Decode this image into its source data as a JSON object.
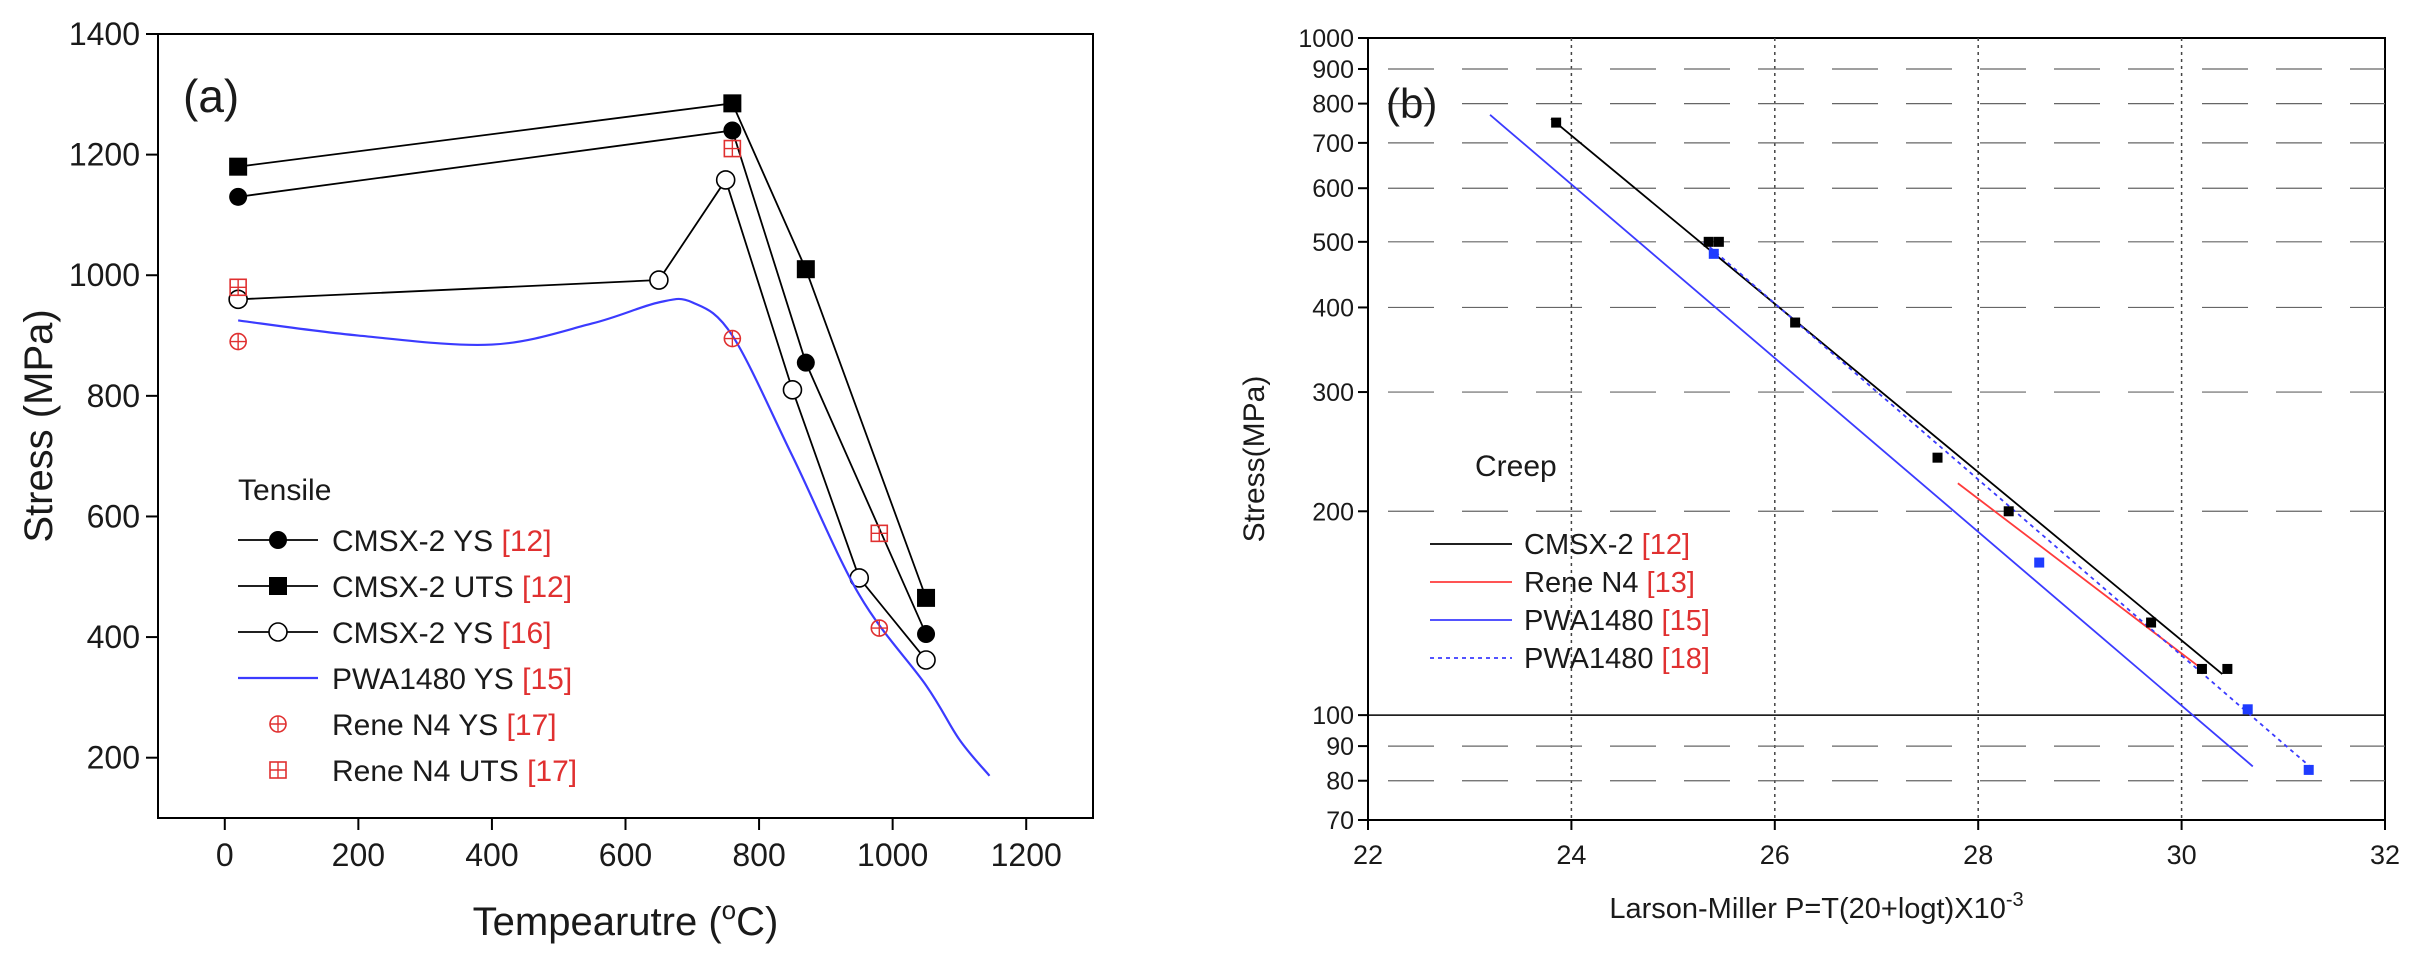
{
  "chart_data": [
    {
      "type": "line",
      "panel": "(a)",
      "xlabel": "Tempearutre (",
      "xlabel_sup": "o",
      "xlabel_tail": "C)",
      "ylabel": "Stress (MPa)",
      "xlim": [
        -100,
        1300
      ],
      "ylim": [
        100,
        1400
      ],
      "xticks": [
        0,
        200,
        400,
        600,
        800,
        1000,
        1200
      ],
      "yticks": [
        200,
        400,
        600,
        800,
        1000,
        1200,
        1400
      ],
      "legend_title": "Tensile",
      "series": [
        {
          "name": "CMSX-2 YS",
          "ref": "[12]",
          "marker": "circle-filled",
          "color": "#000000",
          "x": [
            20,
            760,
            870,
            1050
          ],
          "y": [
            1130,
            1240,
            855,
            405
          ]
        },
        {
          "name": "CMSX-2 UTS",
          "ref": "[12]",
          "marker": "square-filled",
          "color": "#000000",
          "x": [
            20,
            760,
            870,
            1050
          ],
          "y": [
            1180,
            1285,
            1010,
            465
          ]
        },
        {
          "name": "CMSX-2 YS",
          "ref": "[16]",
          "marker": "circle-open",
          "color": "#000000",
          "x": [
            20,
            650,
            750,
            850,
            950,
            1050
          ],
          "y": [
            960,
            992,
            1158,
            810,
            498,
            362
          ]
        },
        {
          "name": "PWA1480 YS",
          "ref": "[15]",
          "marker": "none",
          "color": "#3b3bff",
          "x": [
            20,
            200,
            400,
            550,
            650,
            700,
            760,
            850,
            950,
            1050,
            1100,
            1145
          ],
          "y": [
            925,
            900,
            885,
            920,
            955,
            955,
            900,
            700,
            470,
            320,
            230,
            170
          ]
        },
        {
          "name": "Rene N4 YS",
          "ref": "[17]",
          "marker": "circle-plus",
          "color": "#e03030",
          "x": [
            20,
            760,
            980
          ],
          "y": [
            890,
            895,
            415
          ]
        },
        {
          "name": "Rene N4 UTS",
          "ref": "[17]",
          "marker": "square-plus",
          "color": "#e03030",
          "x": [
            20,
            760,
            980
          ],
          "y": [
            980,
            1210,
            572
          ]
        }
      ]
    },
    {
      "type": "line",
      "panel": "(b)",
      "xlabel": "Larson-Miller P=T(20+logt)X10",
      "xlabel_sup": "-3",
      "ylabel": "Stress(MPa)",
      "yscale": "log",
      "xlim": [
        22,
        32
      ],
      "ylim": [
        70,
        1000
      ],
      "xticks": [
        22,
        24,
        26,
        28,
        30,
        32
      ],
      "yticks": [
        70,
        80,
        90,
        100,
        200,
        300,
        400,
        500,
        600,
        700,
        800,
        900,
        1000
      ],
      "legend_title": "Creep",
      "series": [
        {
          "name": "CMSX-2",
          "ref": "[12]",
          "style": "solid",
          "color": "#000000",
          "x": [
            23.8,
            30.4
          ],
          "y": [
            760,
            115
          ]
        },
        {
          "name": "Rene N4",
          "ref": "[13]",
          "style": "solid",
          "color": "#ff3b3b",
          "x": [
            27.8,
            30.2
          ],
          "y": [
            220,
            117
          ]
        },
        {
          "name": "PWA1480",
          "ref": "[15]",
          "style": "solid",
          "color": "#3b3bff",
          "x": [
            23.2,
            30.7
          ],
          "y": [
            770,
            84
          ]
        },
        {
          "name": "PWA1480",
          "ref": "[18]",
          "style": "dotted",
          "color": "#3b3bff",
          "x": [
            25.3,
            31.3
          ],
          "y": [
            500,
            83
          ]
        }
      ],
      "points": [
        {
          "series": "CMSX-2",
          "color": "#000000",
          "x": [
            23.85,
            25.35,
            25.45,
            26.2,
            27.6,
            28.3,
            29.7,
            30.2,
            30.45
          ],
          "y": [
            750,
            500,
            500,
            380,
            240,
            200,
            137,
            117,
            117
          ]
        },
        {
          "series": "PWA1480 [18]",
          "color": "#1f3cff",
          "x": [
            25.4,
            28.6,
            30.65,
            31.25
          ],
          "y": [
            480,
            168,
            102,
            83
          ]
        }
      ]
    }
  ]
}
